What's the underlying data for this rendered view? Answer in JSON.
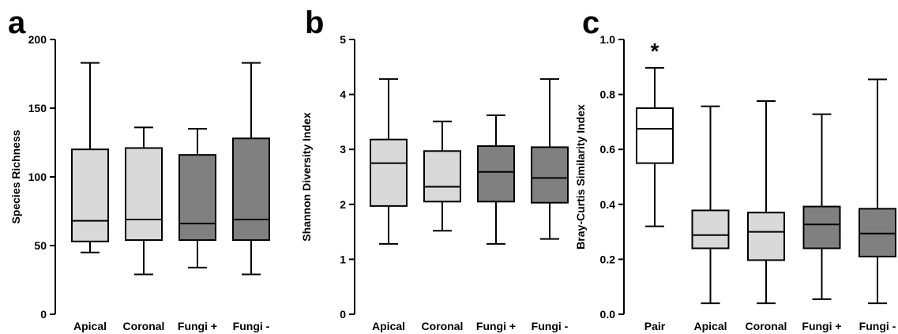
{
  "colors": {
    "light_gray": "#d9d9d9",
    "dark_gray": "#808080",
    "white": "#ffffff",
    "stroke": "#000000"
  },
  "chart_data": [
    {
      "type": "box",
      "panel_label": "a",
      "title": "",
      "xlabel": "",
      "ylabel": "Species Richness",
      "ylim": [
        0,
        200
      ],
      "yticks": [
        0,
        50,
        100,
        150,
        200
      ],
      "grid": false,
      "categories": [
        "Apical",
        "Coronal",
        "Fungi +",
        "Fungi -"
      ],
      "fills": [
        "light_gray",
        "light_gray",
        "dark_gray",
        "dark_gray"
      ],
      "boxes": [
        {
          "min": 45,
          "q1": 53,
          "median": 68,
          "q3": 120,
          "max": 183
        },
        {
          "min": 29,
          "q1": 54,
          "median": 69,
          "q3": 121,
          "max": 136
        },
        {
          "min": 34,
          "q1": 54,
          "median": 66,
          "q3": 116,
          "max": 135
        },
        {
          "min": 29,
          "q1": 54,
          "median": 69,
          "q3": 128,
          "max": 183
        }
      ],
      "annotations": []
    },
    {
      "type": "box",
      "panel_label": "b",
      "title": "",
      "xlabel": "",
      "ylabel": "Shannon Diversity Index",
      "ylim": [
        0,
        5
      ],
      "yticks": [
        0,
        1,
        2,
        3,
        4,
        5
      ],
      "grid": false,
      "categories": [
        "Apical",
        "Coronal",
        "Fungi +",
        "Fungi -"
      ],
      "fills": [
        "light_gray",
        "light_gray",
        "dark_gray",
        "dark_gray"
      ],
      "boxes": [
        {
          "min": 1.28,
          "q1": 1.97,
          "median": 2.75,
          "q3": 3.18,
          "max": 4.28
        },
        {
          "min": 1.52,
          "q1": 2.05,
          "median": 2.32,
          "q3": 2.97,
          "max": 3.51
        },
        {
          "min": 1.28,
          "q1": 2.05,
          "median": 2.59,
          "q3": 3.06,
          "max": 3.62
        },
        {
          "min": 1.37,
          "q1": 2.03,
          "median": 2.48,
          "q3": 3.04,
          "max": 4.28
        }
      ],
      "annotations": []
    },
    {
      "type": "box",
      "panel_label": "c",
      "title": "",
      "xlabel": "",
      "ylabel": "Bray-Curtis Similarity Index",
      "ylim": [
        0,
        1.0
      ],
      "yticks": [
        0.0,
        0.2,
        0.4,
        0.6,
        0.8,
        1.0
      ],
      "ytick_labels": [
        "0.0",
        "0.2",
        "0.4",
        "0.6",
        "0.8",
        "1.0"
      ],
      "grid": false,
      "categories": [
        "Pair",
        "Apical",
        "Coronal",
        "Fungi +",
        "Fungi -"
      ],
      "fills": [
        "white",
        "light_gray",
        "light_gray",
        "dark_gray",
        "dark_gray"
      ],
      "boxes": [
        {
          "min": 0.32,
          "q1": 0.55,
          "median": 0.675,
          "q3": 0.75,
          "max": 0.897
        },
        {
          "min": 0.04,
          "q1": 0.24,
          "median": 0.288,
          "q3": 0.378,
          "max": 0.757
        },
        {
          "min": 0.04,
          "q1": 0.197,
          "median": 0.3,
          "q3": 0.37,
          "max": 0.776
        },
        {
          "min": 0.055,
          "q1": 0.24,
          "median": 0.327,
          "q3": 0.392,
          "max": 0.728
        },
        {
          "min": 0.04,
          "q1": 0.21,
          "median": 0.294,
          "q3": 0.384,
          "max": 0.855
        }
      ],
      "annotations": [
        {
          "text": "*",
          "category": "Pair"
        }
      ]
    }
  ]
}
